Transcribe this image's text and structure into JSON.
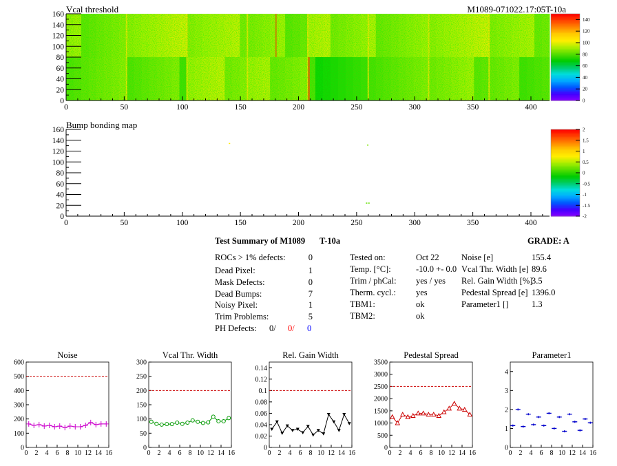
{
  "module_id": "M1089-071022.17:05T-10a",
  "colorscale": {
    "stops": [
      "#8800ff",
      "#4400ff",
      "#0055ff",
      "#00aaff",
      "#00dddd",
      "#00cc66",
      "#00cc00",
      "#55dd00",
      "#aaee00",
      "#ffee00",
      "#ffcc00",
      "#ff8800",
      "#ff4400",
      "#ff0000"
    ]
  },
  "chart_data": [
    {
      "type": "heatmap",
      "title": "Vcal threshold",
      "x_ticks": [
        0,
        50,
        100,
        150,
        200,
        250,
        300,
        350,
        400
      ],
      "y_ticks": [
        0,
        20,
        40,
        60,
        80,
        100,
        120,
        140,
        160
      ],
      "xlim": [
        0,
        416
      ],
      "ylim": [
        0,
        160
      ],
      "zlim": [
        0,
        150
      ],
      "z_ticks": [
        0,
        20,
        40,
        60,
        80,
        100,
        120,
        140
      ],
      "roc_mean": [
        [
          86,
          84,
          92,
          90,
          76,
          84,
          88,
          84
        ],
        [
          88,
          95,
          92,
          88,
          92,
          90,
          94,
          90
        ]
      ]
    },
    {
      "type": "heatmap",
      "title": "Bump bonding map",
      "x_ticks": [
        0,
        50,
        100,
        150,
        200,
        250,
        300,
        350,
        400
      ],
      "y_ticks": [
        0,
        20,
        40,
        60,
        80,
        100,
        120,
        140,
        160
      ],
      "xlim": [
        0,
        416
      ],
      "ylim": [
        0,
        160
      ],
      "zlim": [
        -2,
        2
      ],
      "z_labels": [
        "-2",
        "-1.5",
        "-1",
        "-0.5",
        "0",
        "0.5",
        "1",
        "1.5",
        "2"
      ],
      "points": [
        {
          "x": 140,
          "y": 135,
          "z": 0.8
        },
        {
          "x": 259,
          "y": 132,
          "z": 0.3
        },
        {
          "x": 258,
          "y": 25,
          "z": 0.2
        },
        {
          "x": 260,
          "y": 25,
          "z": 0.2
        }
      ]
    },
    {
      "type": "line",
      "title": "Noise",
      "marker": "cross",
      "color": "#cc00cc",
      "x": [
        0,
        1,
        2,
        3,
        4,
        5,
        6,
        7,
        8,
        9,
        10,
        11,
        12,
        13,
        14,
        15
      ],
      "values": [
        165,
        155,
        160,
        150,
        155,
        145,
        150,
        140,
        150,
        145,
        145,
        155,
        175,
        160,
        165,
        165
      ],
      "ylim": [
        0,
        600
      ],
      "y_ticks": [
        0,
        100,
        200,
        300,
        400,
        500,
        600
      ],
      "x_ticks": [
        0,
        2,
        4,
        6,
        8,
        10,
        12,
        14,
        16
      ],
      "reference": 500
    },
    {
      "type": "line",
      "title": "Vcal Thr. Width",
      "marker": "circle",
      "color": "#009900",
      "x": [
        0,
        1,
        2,
        3,
        4,
        5,
        6,
        7,
        8,
        9,
        10,
        11,
        12,
        13,
        14,
        15
      ],
      "values": [
        90,
        83,
        80,
        82,
        82,
        87,
        83,
        87,
        95,
        90,
        86,
        88,
        108,
        92,
        92,
        103
      ],
      "ylim": [
        0,
        300
      ],
      "y_ticks": [
        0,
        50,
        100,
        150,
        200,
        250,
        300
      ],
      "x_ticks": [
        0,
        2,
        4,
        6,
        8,
        10,
        12,
        14,
        16
      ],
      "reference": 200
    },
    {
      "type": "line",
      "title": "Rel. Gain Width",
      "marker": "triangle-down",
      "color": "#000000",
      "x": [
        0,
        1,
        2,
        3,
        4,
        5,
        6,
        7,
        8,
        9,
        10,
        11,
        12,
        13,
        14,
        15
      ],
      "values": [
        0.032,
        0.045,
        0.025,
        0.038,
        0.03,
        0.032,
        0.026,
        0.037,
        0.022,
        0.03,
        0.024,
        0.058,
        0.045,
        0.03,
        0.058,
        0.042
      ],
      "ylim": [
        0,
        0.15
      ],
      "y_ticks": [
        0,
        0.02,
        0.04,
        0.06,
        0.08,
        0.1,
        0.12,
        0.14
      ],
      "x_ticks": [
        0,
        2,
        4,
        6,
        8,
        10,
        12,
        14,
        16
      ],
      "reference": 0.1
    },
    {
      "type": "line",
      "title": "Pedestal Spread",
      "marker": "triangle-up",
      "color": "#cc0000",
      "x": [
        0,
        1,
        2,
        3,
        4,
        5,
        6,
        7,
        8,
        9,
        10,
        11,
        12,
        13,
        14,
        15
      ],
      "values": [
        1250,
        1000,
        1350,
        1250,
        1300,
        1400,
        1400,
        1350,
        1350,
        1300,
        1450,
        1600,
        1800,
        1600,
        1550,
        1350
      ],
      "ylim": [
        0,
        3500
      ],
      "y_ticks": [
        0,
        500,
        1000,
        1500,
        2000,
        2500,
        3000,
        3500
      ],
      "x_ticks": [
        0,
        2,
        4,
        6,
        8,
        10,
        12,
        14,
        16
      ],
      "reference": 2500
    },
    {
      "type": "scatter",
      "title": "Parameter1",
      "marker": "hbar",
      "color": "#0000cc",
      "x": [
        0,
        1,
        2,
        3,
        4,
        5,
        6,
        7,
        8,
        9,
        10,
        11,
        12,
        13,
        14,
        15
      ],
      "values": [
        1.15,
        2.0,
        1.1,
        1.75,
        1.2,
        1.6,
        1.15,
        1.8,
        1.0,
        1.6,
        0.85,
        1.75,
        1.35,
        0.9,
        1.5,
        1.3
      ],
      "ylim": [
        0,
        4.5
      ],
      "y_ticks": [
        0,
        1,
        2,
        3,
        4
      ],
      "x_ticks": [
        0,
        2,
        4,
        6,
        8,
        10,
        12,
        14,
        16
      ]
    }
  ],
  "summary": {
    "title": "Test Summary of M1089",
    "variant": "T-10a",
    "grade": "GRADE:  A",
    "defects": [
      {
        "label": "ROCs > 1% defects:",
        "value": "0"
      },
      {
        "label": "Dead Pixel:",
        "value": "1"
      },
      {
        "label": "Mask Defects:",
        "value": "0"
      },
      {
        "label": "Dead Bumps:",
        "value": "7"
      },
      {
        "label": "Noisy Pixel:",
        "value": "1"
      },
      {
        "label": "Trim Problems:",
        "value": "5"
      }
    ],
    "ph_defects": {
      "label": "PH Defects:",
      "a": "0/",
      "b": "0/",
      "c": "0"
    },
    "conditions": [
      {
        "label": "Tested on:",
        "value": "Oct 22"
      },
      {
        "label": "Temp. [°C]:",
        "value": "-10.0 +- 0.0"
      },
      {
        "label": "Trim / phCal:",
        "value": "yes / yes"
      },
      {
        "label": "Therm. cycl.:",
        "value": "yes"
      },
      {
        "label": "TBM1:",
        "value": "ok"
      },
      {
        "label": "TBM2:",
        "value": "ok"
      }
    ],
    "parameters": [
      {
        "label": "Noise [e]",
        "value": "155.4"
      },
      {
        "label": "Vcal Thr. Width [e]",
        "value": "89.6"
      },
      {
        "label": "Rel. Gain Width [%]",
        "value": "3.5"
      },
      {
        "label": "Pedestal Spread [e]",
        "value": "1396.0"
      },
      {
        "label": "Parameter1 []",
        "value": "1.3"
      }
    ]
  }
}
